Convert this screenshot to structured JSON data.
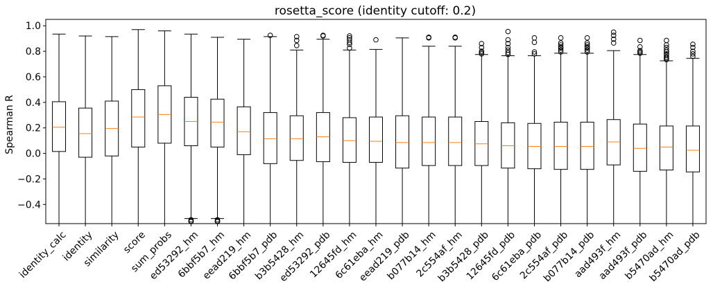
{
  "chart_data": {
    "type": "box",
    "title": "rosetta_score (identity cutoff: 0.2)",
    "xlabel": "",
    "ylabel": "Spearman R",
    "ylim": [
      -0.55,
      1.05
    ],
    "yticks": [
      -0.4,
      -0.2,
      0.0,
      0.2,
      0.4,
      0.6,
      0.8,
      1.0
    ],
    "ytick_labels": [
      "−0.4",
      "−0.2",
      "0.0",
      "0.2",
      "0.4",
      "0.6",
      "0.8",
      "1.0"
    ],
    "grid": false,
    "colors": {
      "box": "#000000",
      "median": "#ff7f0e",
      "whisker": "#000000",
      "flier": "#000000"
    },
    "categories": [
      "identity_calc",
      "identity",
      "similarity",
      "score",
      "sum_probs",
      "ed53292_hm",
      "6bbf5b7_hm",
      "eead219_hm",
      "6bbf5b7_pdb",
      "b3b5428_hm",
      "ed53292_pdb",
      "12645fd_hm",
      "6c61eba_hm",
      "eead219_pdb",
      "b077b14_hm",
      "2c554af_hm",
      "b3b5428_pdb",
      "12645fd_pdb",
      "6c61eba_pdb",
      "2c554af_pdb",
      "b077b14_pdb",
      "aad493f_hm",
      "aad493f_pdb",
      "b5470ad_hm",
      "b5470ad_pdb"
    ],
    "boxes": [
      {
        "whislo": -0.55,
        "q1": 0.015,
        "med": 0.205,
        "q3": 0.405,
        "whishi": 0.935,
        "fliers": []
      },
      {
        "whislo": -0.55,
        "q1": -0.03,
        "med": 0.155,
        "q3": 0.355,
        "whishi": 0.92,
        "fliers": []
      },
      {
        "whislo": -0.55,
        "q1": -0.02,
        "med": 0.195,
        "q3": 0.41,
        "whishi": 0.915,
        "fliers": []
      },
      {
        "whislo": -0.55,
        "q1": 0.05,
        "med": 0.285,
        "q3": 0.5,
        "whishi": 0.97,
        "fliers": []
      },
      {
        "whislo": -0.55,
        "q1": 0.08,
        "med": 0.305,
        "q3": 0.53,
        "whishi": 0.96,
        "fliers": []
      },
      {
        "whislo": -0.51,
        "q1": 0.06,
        "med": 0.25,
        "q3": 0.44,
        "whishi": 0.935,
        "fliers": [
          -0.52,
          -0.53,
          -0.54,
          -0.545
        ]
      },
      {
        "whislo": -0.51,
        "q1": 0.05,
        "med": 0.245,
        "q3": 0.425,
        "whishi": 0.91,
        "fliers": [
          -0.52,
          -0.53,
          -0.54,
          -0.545
        ]
      },
      {
        "whislo": -0.55,
        "q1": -0.01,
        "med": 0.17,
        "q3": 0.365,
        "whishi": 0.895,
        "fliers": []
      },
      {
        "whislo": -0.55,
        "q1": -0.08,
        "med": 0.115,
        "q3": 0.32,
        "whishi": 0.915,
        "fliers": [
          0.925
        ]
      },
      {
        "whislo": -0.55,
        "q1": -0.055,
        "med": 0.115,
        "q3": 0.295,
        "whishi": 0.81,
        "fliers": [
          0.845,
          0.885,
          0.915
        ]
      },
      {
        "whislo": -0.55,
        "q1": -0.065,
        "med": 0.13,
        "q3": 0.32,
        "whishi": 0.895,
        "fliers": [
          0.92,
          0.925
        ]
      },
      {
        "whislo": -0.55,
        "q1": -0.07,
        "med": 0.1,
        "q3": 0.28,
        "whishi": 0.81,
        "fliers": [
          0.825,
          0.855,
          0.87,
          0.89,
          0.905,
          0.92
        ]
      },
      {
        "whislo": -0.55,
        "q1": -0.07,
        "med": 0.095,
        "q3": 0.285,
        "whishi": 0.815,
        "fliers": [
          0.89
        ]
      },
      {
        "whislo": -0.55,
        "q1": -0.115,
        "med": 0.085,
        "q3": 0.295,
        "whishi": 0.905,
        "fliers": []
      },
      {
        "whislo": -0.55,
        "q1": -0.095,
        "med": 0.085,
        "q3": 0.285,
        "whishi": 0.84,
        "fliers": [
          0.905,
          0.91
        ]
      },
      {
        "whislo": -0.55,
        "q1": -0.095,
        "med": 0.085,
        "q3": 0.285,
        "whishi": 0.84,
        "fliers": [
          0.905,
          0.91
        ]
      },
      {
        "whislo": -0.55,
        "q1": -0.095,
        "med": 0.075,
        "q3": 0.25,
        "whishi": 0.775,
        "fliers": [
          0.78,
          0.79,
          0.8,
          0.83,
          0.86
        ]
      },
      {
        "whislo": -0.55,
        "q1": -0.115,
        "med": 0.06,
        "q3": 0.24,
        "whishi": 0.765,
        "fliers": [
          0.775,
          0.79,
          0.81,
          0.83,
          0.86,
          0.89,
          0.955
        ]
      },
      {
        "whislo": -0.55,
        "q1": -0.12,
        "med": 0.055,
        "q3": 0.235,
        "whishi": 0.765,
        "fliers": [
          0.78,
          0.795,
          0.87,
          0.905
        ]
      },
      {
        "whislo": -0.55,
        "q1": -0.125,
        "med": 0.055,
        "q3": 0.245,
        "whishi": 0.785,
        "fliers": [
          0.795,
          0.81,
          0.825,
          0.835,
          0.85,
          0.865,
          0.905
        ]
      },
      {
        "whislo": -0.55,
        "q1": -0.125,
        "med": 0.055,
        "q3": 0.245,
        "whishi": 0.785,
        "fliers": [
          0.795,
          0.81,
          0.825,
          0.835,
          0.85,
          0.865,
          0.905
        ]
      },
      {
        "whislo": -0.55,
        "q1": -0.09,
        "med": 0.09,
        "q3": 0.265,
        "whishi": 0.805,
        "fliers": [
          0.865,
          0.895,
          0.925,
          0.95
        ]
      },
      {
        "whislo": -0.55,
        "q1": -0.14,
        "med": 0.04,
        "q3": 0.23,
        "whishi": 0.775,
        "fliers": [
          0.785,
          0.795,
          0.805,
          0.835,
          0.885
        ]
      },
      {
        "whislo": -0.55,
        "q1": -0.13,
        "med": 0.05,
        "q3": 0.215,
        "whishi": 0.725,
        "fliers": [
          0.735,
          0.745,
          0.755,
          0.77,
          0.78,
          0.795,
          0.81,
          0.83,
          0.85,
          0.885
        ]
      },
      {
        "whislo": -0.55,
        "q1": -0.145,
        "med": 0.025,
        "q3": 0.215,
        "whishi": 0.745,
        "fliers": [
          0.76,
          0.78,
          0.8,
          0.83,
          0.855
        ]
      }
    ]
  }
}
